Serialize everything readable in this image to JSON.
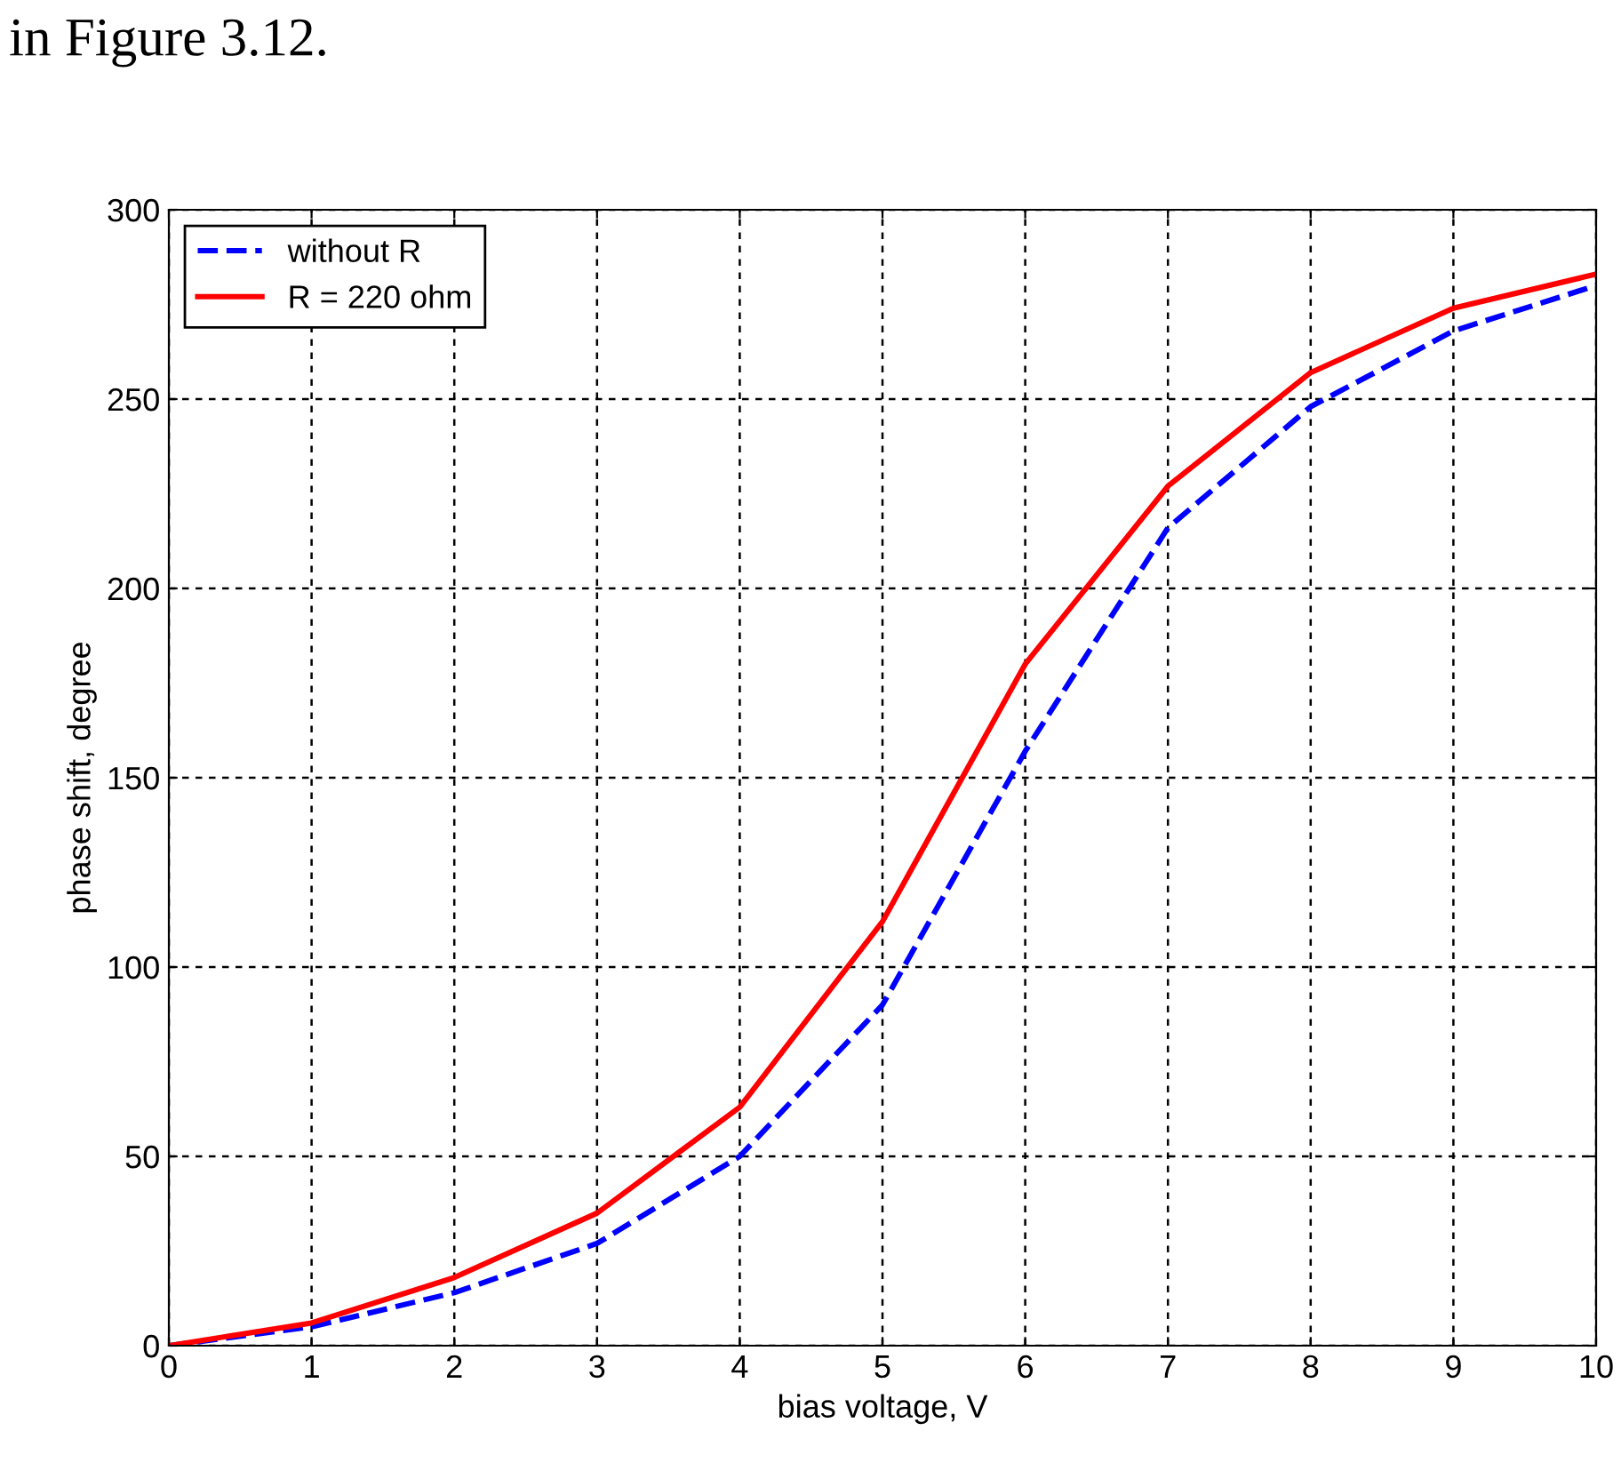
{
  "chart_data": {
    "type": "line",
    "xlabel": "bias voltage, V",
    "ylabel": "phase shift, degree",
    "annotations": [
      "in Figure 3.12."
    ],
    "x": [
      0,
      1,
      2,
      3,
      4,
      5,
      6,
      7,
      8,
      9,
      10
    ],
    "series": [
      {
        "name": "without R",
        "color": "#0000ff",
        "line_style": "dashed",
        "values": [
          0,
          5,
          14,
          27,
          50,
          90,
          157,
          216,
          248,
          268,
          280
        ]
      },
      {
        "name": "R = 220 ohm",
        "color": "#ff0000",
        "line_style": "solid",
        "values": [
          0,
          6,
          18,
          35,
          63,
          112,
          180,
          227,
          257,
          274,
          283
        ]
      }
    ],
    "xlim": [
      0,
      10
    ],
    "xticks": [
      0,
      1,
      2,
      3,
      4,
      5,
      6,
      7,
      8,
      9,
      10
    ],
    "ylim": [
      0,
      300
    ],
    "yticks": [
      0,
      50,
      100,
      150,
      200,
      250,
      300
    ],
    "grid": true,
    "legend": "top left"
  }
}
